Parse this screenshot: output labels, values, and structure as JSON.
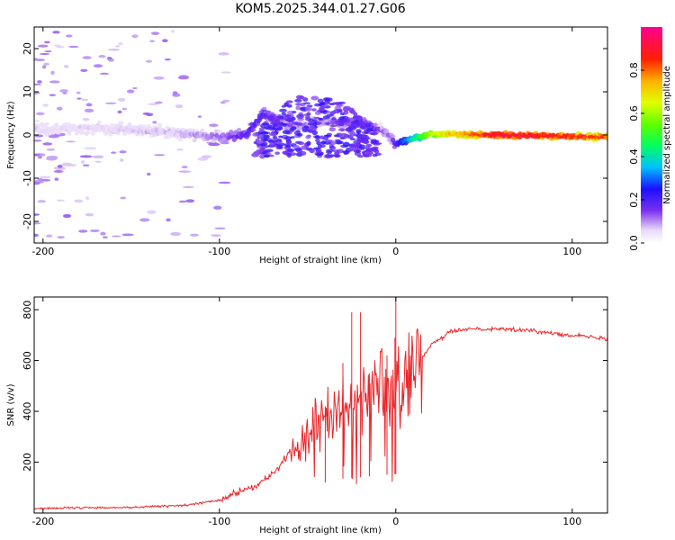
{
  "title": "KOM5.2025.344.01.27.G06",
  "chart_data": [
    {
      "type": "heatmap",
      "xlabel": "Height of straight line (km)",
      "ylabel": "Frequency (Hz)",
      "xlim": [
        -205,
        120
      ],
      "ylim": [
        -25,
        25
      ],
      "xticks": [
        -200,
        -100,
        0,
        100
      ],
      "yticks": [
        -20,
        -10,
        0,
        10,
        20
      ],
      "colorbar": {
        "label": "Normalized spectral amplitude",
        "range": [
          0,
          1
        ],
        "ticks": [
          "0.0",
          "0.2",
          "0.4",
          "0.6",
          "0.8"
        ],
        "tick_values": [
          0.0,
          0.2,
          0.4,
          0.6,
          0.8
        ]
      },
      "ridge": [
        {
          "x": -205,
          "f": 1.5,
          "a": 0.05
        },
        {
          "x": -160,
          "f": 1.5,
          "a": 0.06
        },
        {
          "x": -125,
          "f": 0.5,
          "a": 0.08
        },
        {
          "x": -100,
          "f": -0.5,
          "a": 0.12
        },
        {
          "x": -85,
          "f": 0.0,
          "a": 0.2
        },
        {
          "x": -75,
          "f": 5.0,
          "a": 0.2
        },
        {
          "x": -60,
          "f": 2.0,
          "a": 0.1
        },
        {
          "x": -40,
          "f": 3.0,
          "a": 0.1
        },
        {
          "x": -20,
          "f": 3.0,
          "a": 0.22
        },
        {
          "x": -5,
          "f": 0.5,
          "a": 0.1
        },
        {
          "x": 0,
          "f": -2.0,
          "a": 0.2
        },
        {
          "x": 20,
          "f": 0.3,
          "a": 0.65
        },
        {
          "x": 60,
          "f": 0.0,
          "a": 0.98
        },
        {
          "x": 120,
          "f": -0.5,
          "a": 0.85
        }
      ],
      "arch_region": {
        "x": [
          -80,
          -10
        ],
        "f": [
          -5,
          10
        ]
      }
    },
    {
      "type": "line",
      "xlabel": "Height of straight line (km)",
      "ylabel": "SNR (v/v)",
      "xlim": [
        -205,
        120
      ],
      "ylim": [
        0,
        850
      ],
      "xticks": [
        -200,
        -100,
        0,
        100
      ],
      "yticks": [
        200,
        400,
        600,
        800
      ],
      "color": "#e8262a",
      "series": [
        {
          "name": "SNR",
          "x": [
            -205,
            -150,
            -120,
            -100,
            -90,
            -80,
            -70,
            -60,
            -50,
            -40,
            -30,
            -20,
            -10,
            0,
            10,
            20,
            30,
            40,
            60,
            80,
            100,
            120
          ],
          "y": [
            18,
            22,
            30,
            50,
            80,
            105,
            150,
            240,
            330,
            400,
            450,
            470,
            490,
            510,
            560,
            660,
            710,
            725,
            725,
            715,
            700,
            685
          ]
        }
      ],
      "spikes": [
        {
          "x": -25,
          "y": 790
        },
        {
          "x": -20,
          "y": 790
        },
        {
          "x": -30,
          "y": 590
        },
        {
          "x": -15,
          "y": 550
        },
        {
          "x": -40,
          "y": 420
        },
        {
          "x": -5,
          "y": 620
        },
        {
          "x": 0,
          "y": 860
        },
        {
          "x": -0.5,
          "y": 690
        }
      ]
    }
  ]
}
